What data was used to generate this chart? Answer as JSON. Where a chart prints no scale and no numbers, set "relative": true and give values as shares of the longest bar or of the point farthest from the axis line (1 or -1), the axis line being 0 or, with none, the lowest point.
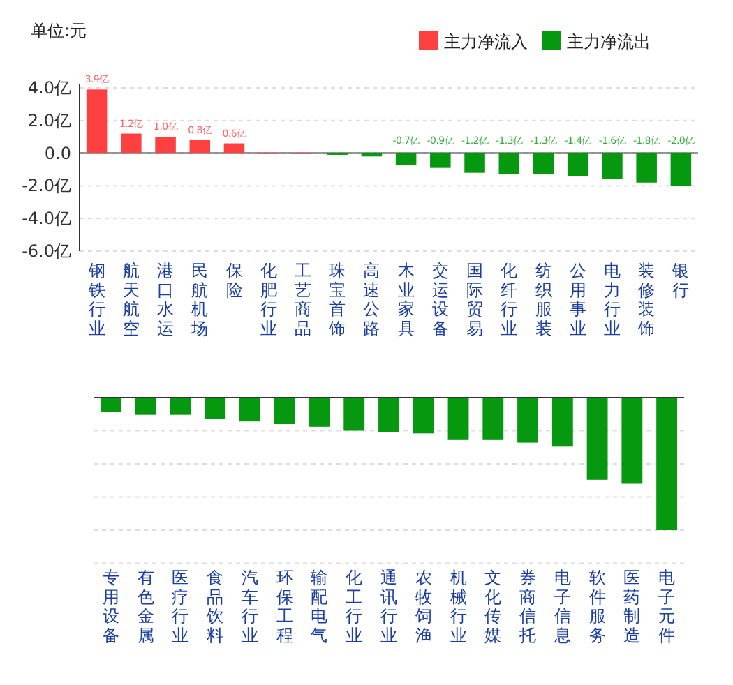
{
  "chart_data": [
    {
      "type": "bar",
      "ylabel": "单位:元",
      "stacked": true,
      "legend": "top right",
      "grid": "y",
      "data_labels": false,
      "categories": [
        "钢铁行业",
        "航天航空",
        "港口水运",
        "民航机场",
        "保险",
        "化肥行业",
        "工艺商品",
        "珠宝首饰",
        "高速公路",
        "木业家具",
        "交运设备",
        "国际贸易",
        "化纤行业",
        "纺织服装",
        "公用事业",
        "电力行业",
        "装修装饰",
        "银行"
      ],
      "ylim": [
        -6,
        4
      ],
      "yticks": [
        {
          "value": -6,
          "label": "-6.0亿"
        },
        {
          "value": -4,
          "label": "-4.0亿"
        },
        {
          "value": -2,
          "label": "-2.0亿"
        },
        {
          "value": 0,
          "label": "0.0"
        },
        {
          "value": 2,
          "label": "2.0亿"
        },
        {
          "value": 4,
          "label": "4.0亿"
        }
      ],
      "series": [
        {
          "name": "主力净流入",
          "color": "#ff4040",
          "values": [
            3.9,
            1.2,
            1.0,
            0.8,
            0.6,
            0.0,
            0.0,
            null,
            null,
            null,
            null,
            null,
            null,
            null,
            null,
            null,
            null,
            null
          ],
          "value_labels": [
            "3.9亿",
            "1.2亿",
            "1.0亿",
            "0.8亿",
            "0.6亿",
            null,
            null,
            null,
            null,
            null,
            null,
            null,
            null,
            null,
            null,
            null,
            null,
            null
          ]
        },
        {
          "name": "主力净流出",
          "color": "#06980e",
          "values": [
            null,
            null,
            null,
            null,
            null,
            null,
            null,
            -0.1,
            -0.2,
            -0.7,
            -0.9,
            -1.2,
            -1.3,
            -1.3,
            -1.4,
            -1.6,
            -1.8,
            -2.0
          ],
          "value_labels": [
            null,
            null,
            null,
            null,
            null,
            null,
            null,
            null,
            null,
            "-0.7亿",
            "-0.9亿",
            "-1.2亿",
            "-1.3亿",
            "-1.3亿",
            "-1.4亿",
            "-1.6亿",
            "-1.8亿",
            "-2.0亿"
          ]
        }
      ]
    },
    {
      "type": "bar",
      "relative": true,
      "grid": "y",
      "tick_labels": "x",
      "categories": [
        "专用设备",
        "有色金属",
        "医疗行业",
        "食品饮料",
        "汽车行业",
        "环保工程",
        "输配电气",
        "化工行业",
        "通讯行业",
        "农牧饲渔",
        "机械行业",
        "文化传媒",
        "券商信托",
        "电子信息",
        "软件服务",
        "医药制造",
        "电子元件"
      ],
      "series": [
        {
          "color": "#06980e",
          "values": [
            -0.11,
            -0.13,
            -0.13,
            -0.16,
            -0.18,
            -0.2,
            -0.22,
            -0.25,
            -0.26,
            -0.27,
            -0.32,
            -0.32,
            -0.34,
            -0.37,
            -0.62,
            -0.65,
            -1
          ]
        }
      ]
    }
  ]
}
